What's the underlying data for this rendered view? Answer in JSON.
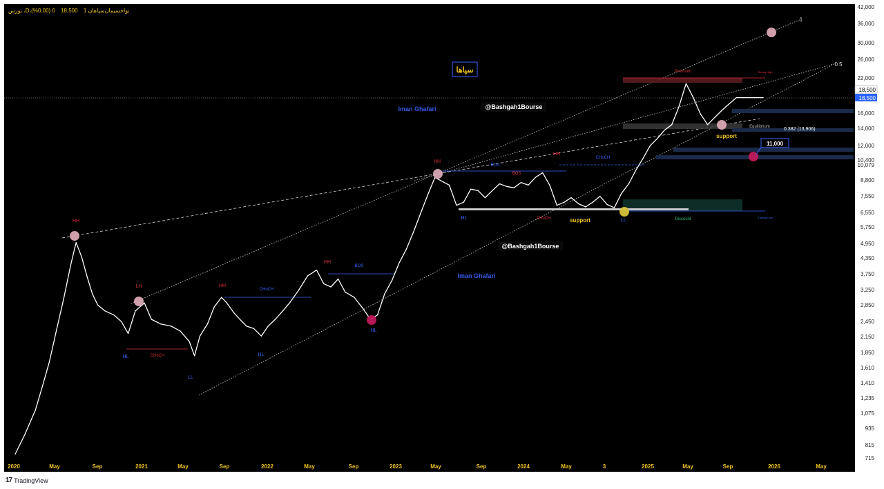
{
  "header": {
    "symbol": "بورس ،D،نواخسیمان‌سپاهان 1",
    "last_price": "18,500",
    "change": "0 (0.00%)"
  },
  "footer": {
    "brand": "TradingView",
    "logo": "17"
  },
  "colors": {
    "background": "#000000",
    "price_line": "#ffffff",
    "accent_red": "#e0303a",
    "accent_blue": "#3a63ff",
    "accent_gold": "#f0c420",
    "axis_bg": "#ffffff",
    "last_price_badge": "#2962ff"
  },
  "chart_data": {
    "type": "line",
    "title": "",
    "xlabel": "",
    "ylabel": "",
    "y_scale": "log",
    "ylim": [
      715,
      42000
    ],
    "xlim": [
      "2020-01",
      "2026-06"
    ],
    "x_ticks": [
      "2020",
      "May",
      "Sep",
      "2021",
      "May",
      "Sep",
      "2022",
      "May",
      "Sep",
      "2023",
      "May",
      "Sep",
      "2024",
      "May",
      "3",
      "2025",
      "May",
      "Sep",
      "2026",
      "May"
    ],
    "y_ticks": [
      "42,000",
      "36,000",
      "30,000",
      "26,000",
      "22,000",
      "18,500",
      "16,000",
      "14,000",
      "12,000",
      "10,400",
      "10,079",
      "8,800",
      "7,550",
      "6,550",
      "5,750",
      "4,950",
      "4,350",
      "3,750",
      "3,250",
      "2,850",
      "2,450",
      "2,150",
      "1,850",
      "1,610",
      "1,410",
      "1,235",
      "1,075",
      "935",
      "815",
      "715"
    ],
    "last_price_label": "18,500",
    "last_price_label_alt": "18,500",
    "series": [
      {
        "x": [
          "2020-01-05",
          "2020-02-01",
          "2020-03-01",
          "2020-03-20",
          "2020-04-10",
          "2020-05-01",
          "2020-05-20",
          "2020-06-10",
          "2020-06-25",
          "2020-07-10",
          "2020-07-25",
          "2020-08-10",
          "2020-08-25",
          "2020-09-15",
          "2020-10-10",
          "2020-11-01",
          "2020-11-20",
          "2020-12-10",
          "2021-01-05",
          "2021-01-25",
          "2021-02-20",
          "2021-03-20",
          "2021-04-15",
          "2021-05-10",
          "2021-05-25",
          "2021-06-10",
          "2021-07-01",
          "2021-07-20",
          "2021-08-10",
          "2021-08-25",
          "2021-09-15",
          "2021-10-01",
          "2021-10-20",
          "2021-11-10",
          "2021-12-01",
          "2021-12-20",
          "2022-01-10",
          "2022-02-01",
          "2022-02-20",
          "2022-03-15",
          "2022-04-10",
          "2022-05-05",
          "2022-05-25",
          "2022-06-15",
          "2022-07-05",
          "2022-07-25",
          "2022-08-20",
          "2022-09-15",
          "2022-10-05",
          "2022-10-25",
          "2022-11-15",
          "2022-12-05",
          "2022-12-25",
          "2023-01-15",
          "2023-02-05",
          "2023-02-25",
          "2023-03-15",
          "2023-04-05",
          "2023-04-25",
          "2023-05-15",
          "2023-06-05",
          "2023-06-25",
          "2023-07-15",
          "2023-08-05",
          "2023-08-25",
          "2023-09-15",
          "2023-10-05",
          "2023-10-25",
          "2023-11-15",
          "2023-12-05",
          "2023-12-25",
          "2024-01-15",
          "2024-02-05",
          "2024-02-25",
          "2024-03-15",
          "2024-04-05",
          "2024-04-25",
          "2024-05-15",
          "2024-06-05",
          "2024-06-25",
          "2024-07-15",
          "2024-08-05",
          "2024-08-25",
          "2024-09-15",
          "2024-10-05",
          "2024-10-25",
          "2024-11-15",
          "2024-12-05",
          "2024-12-25",
          "2025-01-15",
          "2025-02-05",
          "2025-02-25",
          "2025-03-15",
          "2025-04-05",
          "2025-04-25",
          "2025-05-15",
          "2025-06-05",
          "2025-06-25",
          "2025-07-15",
          "2025-08-05",
          "2025-08-25",
          "2025-09-15",
          "2025-10-05",
          "2025-10-20"
        ],
        "values": [
          740,
          880,
          1100,
          1350,
          1700,
          2300,
          3000,
          4100,
          5000,
          4400,
          3700,
          3150,
          2850,
          2700,
          2600,
          2450,
          2200,
          2700,
          2900,
          2500,
          2400,
          2350,
          2250,
          2050,
          1800,
          2150,
          2400,
          2800,
          3050,
          2900,
          2650,
          2500,
          2350,
          2300,
          2150,
          2350,
          2500,
          2700,
          2900,
          3250,
          3700,
          3900,
          3450,
          3350,
          3600,
          3200,
          3050,
          2750,
          2500,
          2600,
          3150,
          3550,
          4150,
          4700,
          5500,
          6500,
          7700,
          9000,
          8700,
          8400,
          7000,
          7200,
          8100,
          8000,
          7500,
          8000,
          8500,
          8300,
          8200,
          8600,
          8400,
          9000,
          9400,
          8400,
          7000,
          7200,
          7500,
          7100,
          6900,
          7200,
          7600,
          7050,
          6850,
          7800,
          8500,
          9600,
          10700,
          12000,
          12800,
          13800,
          14500,
          17000,
          21000,
          18500,
          16000,
          14500,
          15500,
          16500,
          17500,
          18500,
          18500,
          18500,
          18500,
          18500
        ]
      }
    ],
    "swing_labels": [
      "HH",
      "LH",
      "HL",
      "LL",
      "HH",
      "HL",
      "HH",
      "HL",
      "HH",
      "HL",
      "HH",
      "LL"
    ],
    "structure_labels": [
      "CHoCH",
      "CHoCH",
      "BOS",
      "CHoCH",
      "BOS",
      "CHoCH",
      "BOS"
    ],
    "annotations": {
      "top_label_1": "1",
      "top_label_05": "0.5",
      "premium": "Premium",
      "strong_high": "Strong High",
      "equilibrium": "Equilibrium",
      "fib_0382": "0.382 (13,906)",
      "target": "11,000",
      "discount": "Discount",
      "trailing_low": "Trailing Low",
      "support_1": "support",
      "support_2": "support",
      "watermark_1": "@Bashgah1Bourse",
      "watermark_2": "@Bashgah1Bourse",
      "author_1": "Iman Ghafari",
      "author_2": "Iman Ghafari",
      "persian_title": "سپاها"
    },
    "grid": false,
    "legend": "none"
  }
}
